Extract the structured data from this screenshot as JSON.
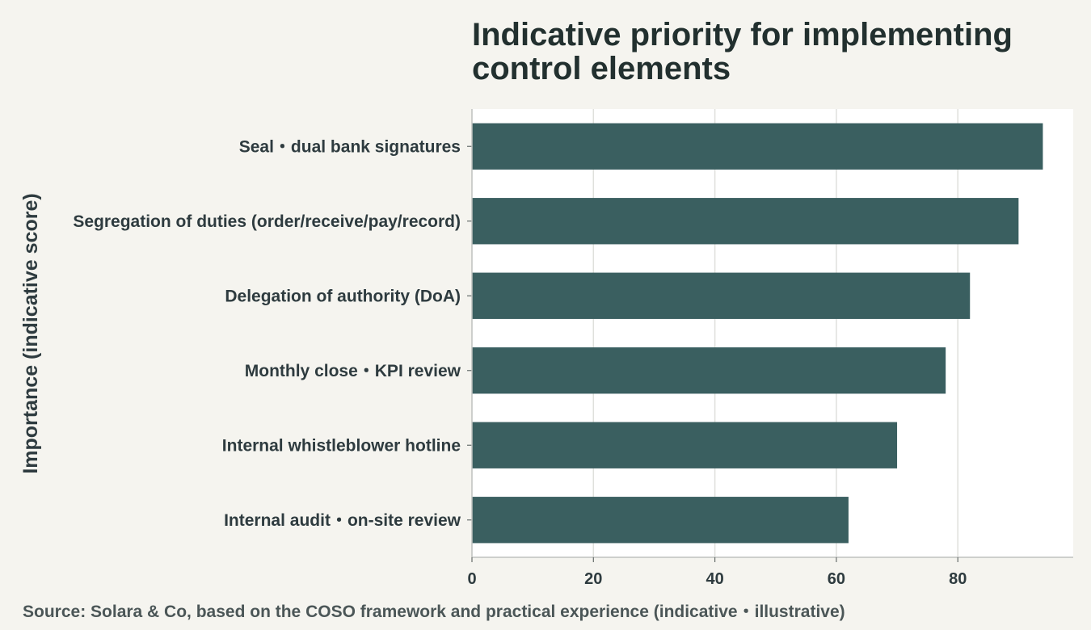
{
  "chart_data": {
    "type": "bar",
    "orientation": "horizontal",
    "title": "Indicative priority for implementing control elements",
    "title_lines": [
      "Indicative priority for implementing",
      "control elements"
    ],
    "categories": [
      "Seal・dual bank signatures",
      "Segregation of duties (order/receive/pay/record)",
      "Delegation of authority (DoA)",
      "Monthly close・KPI review",
      "Internal whistleblower hotline",
      "Internal audit・on-site review"
    ],
    "values": [
      94,
      90,
      82,
      78,
      70,
      62
    ],
    "xlabel": "",
    "ylabel": "Importance (indicative score)",
    "xlim": [
      0,
      99
    ],
    "xticks": [
      0,
      20,
      40,
      60,
      80
    ],
    "grid": "vertical",
    "legend": "none",
    "colors": {
      "bar": "#3a5f60",
      "background": "#f5f4ef",
      "plot_background": "#ffffff",
      "grid": "#dfe0dc"
    },
    "source": "Source: Solara & Co, based on the COSO framework and practical experience (indicative・illustrative)"
  }
}
